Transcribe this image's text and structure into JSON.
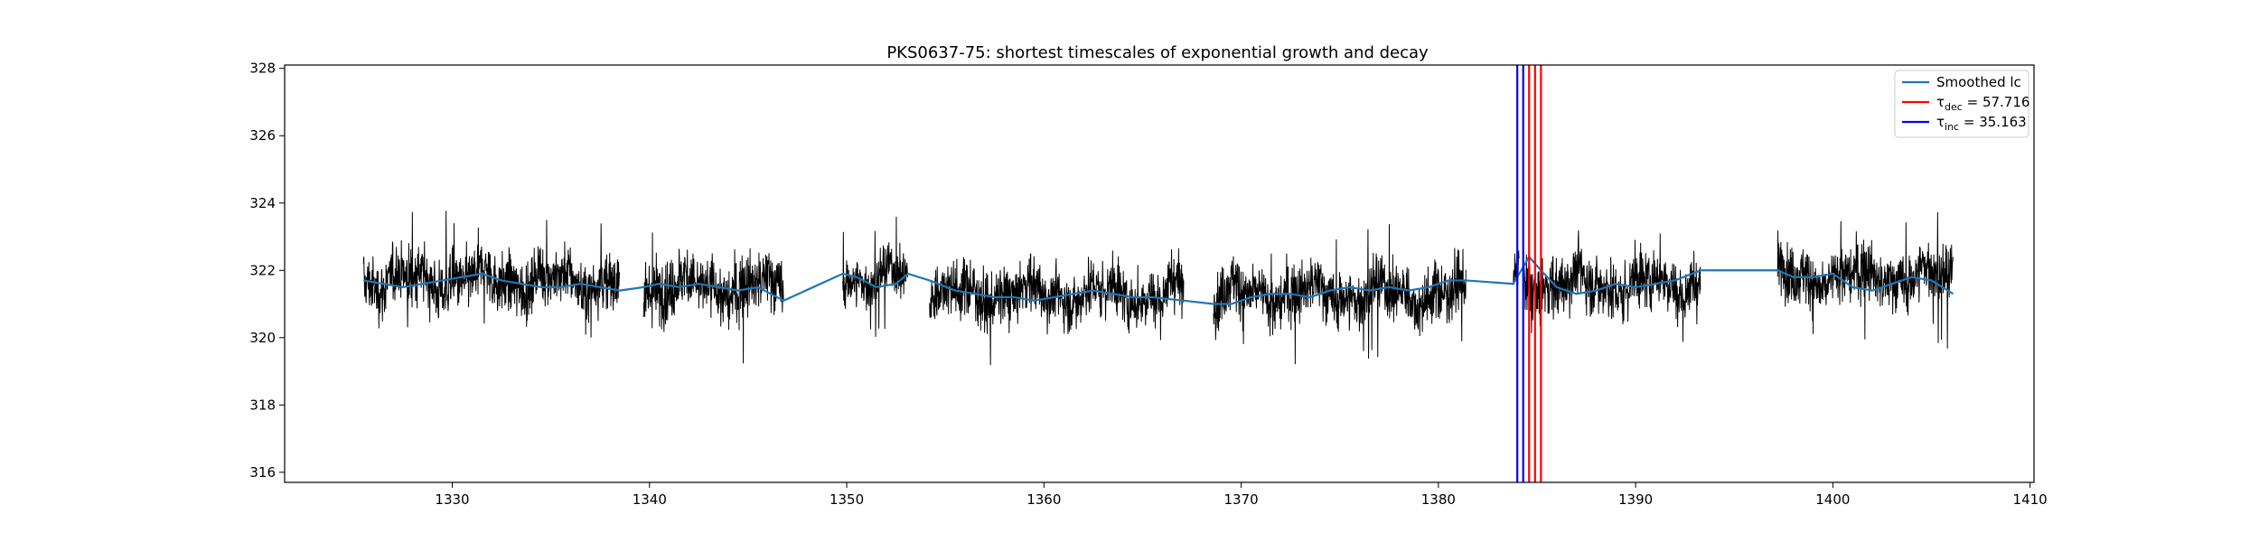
{
  "chart_data": {
    "type": "line",
    "title": "PKS0637-75: shortest timescales of exponential growth and decay",
    "xlabel": "",
    "ylabel": "",
    "xlim": [
      1321.5,
      1410.2
    ],
    "ylim": [
      315.7,
      328.1
    ],
    "xticks": [
      1330,
      1340,
      1350,
      1360,
      1370,
      1380,
      1390,
      1400,
      1410
    ],
    "yticks": [
      316,
      318,
      320,
      322,
      324,
      326,
      328
    ],
    "grid": false,
    "legend_position": "top-right",
    "raw_segments": [
      {
        "x_start": 1325.5,
        "x_end": 1338.5,
        "center": 321.7,
        "amplitude": 1.1
      },
      {
        "x_start": 1339.7,
        "x_end": 1346.8,
        "center": 321.5,
        "amplitude": 1.2
      },
      {
        "x_start": 1349.8,
        "x_end": 1353.1,
        "center": 321.8,
        "amplitude": 0.9
      },
      {
        "x_start": 1354.2,
        "x_end": 1367.1,
        "center": 321.3,
        "amplitude": 1.1
      },
      {
        "x_start": 1368.6,
        "x_end": 1381.4,
        "center": 321.3,
        "amplitude": 1.1
      },
      {
        "x_start": 1383.8,
        "x_end": 1384.1,
        "center": 321.5,
        "amplitude": 1.0
      },
      {
        "x_start": 1384.3,
        "x_end": 1393.3,
        "center": 321.6,
        "amplitude": 1.2
      },
      {
        "x_start": 1397.2,
        "x_end": 1406.1,
        "center": 321.8,
        "amplitude": 1.1
      }
    ],
    "series": [
      {
        "name": "Smoothed lc",
        "color": "#1f77b4",
        "points": [
          [
            1325.5,
            321.7
          ],
          [
            1326.5,
            321.6
          ],
          [
            1327.5,
            321.5
          ],
          [
            1328.5,
            321.6
          ],
          [
            1329.5,
            321.7
          ],
          [
            1330.5,
            321.8
          ],
          [
            1331.5,
            321.9
          ],
          [
            1332.5,
            321.7
          ],
          [
            1333.5,
            321.6
          ],
          [
            1334.5,
            321.5
          ],
          [
            1335.5,
            321.5
          ],
          [
            1336.5,
            321.6
          ],
          [
            1337.5,
            321.5
          ],
          [
            1338.5,
            321.4
          ],
          [
            1339.7,
            321.5
          ],
          [
            1340.5,
            321.6
          ],
          [
            1341.5,
            321.5
          ],
          [
            1342.5,
            321.6
          ],
          [
            1343.5,
            321.5
          ],
          [
            1344.5,
            321.4
          ],
          [
            1345.5,
            321.5
          ],
          [
            1346.8,
            321.1
          ],
          [
            1349.8,
            321.9
          ],
          [
            1350.5,
            321.8
          ],
          [
            1351.5,
            321.5
          ],
          [
            1352.5,
            321.6
          ],
          [
            1353.1,
            321.9
          ],
          [
            1354.2,
            321.7
          ],
          [
            1355.5,
            321.4
          ],
          [
            1356.5,
            321.3
          ],
          [
            1357.5,
            321.2
          ],
          [
            1358.5,
            321.2
          ],
          [
            1359.5,
            321.1
          ],
          [
            1360.5,
            321.2
          ],
          [
            1361.5,
            321.3
          ],
          [
            1362.5,
            321.4
          ],
          [
            1363.5,
            321.3
          ],
          [
            1364.5,
            321.2
          ],
          [
            1365.5,
            321.2
          ],
          [
            1367.1,
            321.1
          ],
          [
            1368.6,
            321.0
          ],
          [
            1369.5,
            321.0
          ],
          [
            1370.5,
            321.2
          ],
          [
            1371.5,
            321.3
          ],
          [
            1372.5,
            321.3
          ],
          [
            1373.5,
            321.2
          ],
          [
            1374.5,
            321.4
          ],
          [
            1375.5,
            321.5
          ],
          [
            1376.5,
            321.4
          ],
          [
            1377.5,
            321.5
          ],
          [
            1378.5,
            321.4
          ],
          [
            1379.5,
            321.5
          ],
          [
            1380.5,
            321.7
          ],
          [
            1381.4,
            321.7
          ],
          [
            1383.8,
            321.6
          ],
          [
            1384.1,
            321.9
          ],
          [
            1384.6,
            322.4
          ],
          [
            1385.2,
            322.0
          ],
          [
            1386.0,
            321.5
          ],
          [
            1387.0,
            321.3
          ],
          [
            1388.0,
            321.4
          ],
          [
            1389.0,
            321.6
          ],
          [
            1390.0,
            321.5
          ],
          [
            1391.0,
            321.6
          ],
          [
            1392.0,
            321.7
          ],
          [
            1393.3,
            322.0
          ],
          [
            1397.2,
            322.0
          ],
          [
            1398.0,
            321.8
          ],
          [
            1399.0,
            321.8
          ],
          [
            1400.0,
            321.9
          ],
          [
            1401.0,
            321.5
          ],
          [
            1402.0,
            321.4
          ],
          [
            1403.0,
            321.6
          ],
          [
            1404.0,
            321.8
          ],
          [
            1405.0,
            321.7
          ],
          [
            1406.1,
            321.3
          ]
        ]
      }
    ],
    "vlines": [
      {
        "x": 1384.0,
        "color": "#0000ff"
      },
      {
        "x": 1384.3,
        "color": "#0000ff"
      },
      {
        "x": 1384.6,
        "color": "#ff0000"
      },
      {
        "x": 1384.9,
        "color": "#ff0000"
      },
      {
        "x": 1385.2,
        "color": "#ff0000"
      }
    ],
    "legend": [
      {
        "label_main": "Smoothed lc",
        "label_sub": "",
        "label_rest": "",
        "color": "#1f77b4"
      },
      {
        "label_main": "τ",
        "label_sub": "dec",
        "label_rest": " = 57.716",
        "color": "#ff0000"
      },
      {
        "label_main": "τ",
        "label_sub": "inc",
        "label_rest": " = 35.163",
        "color": "#0000ff"
      }
    ]
  }
}
